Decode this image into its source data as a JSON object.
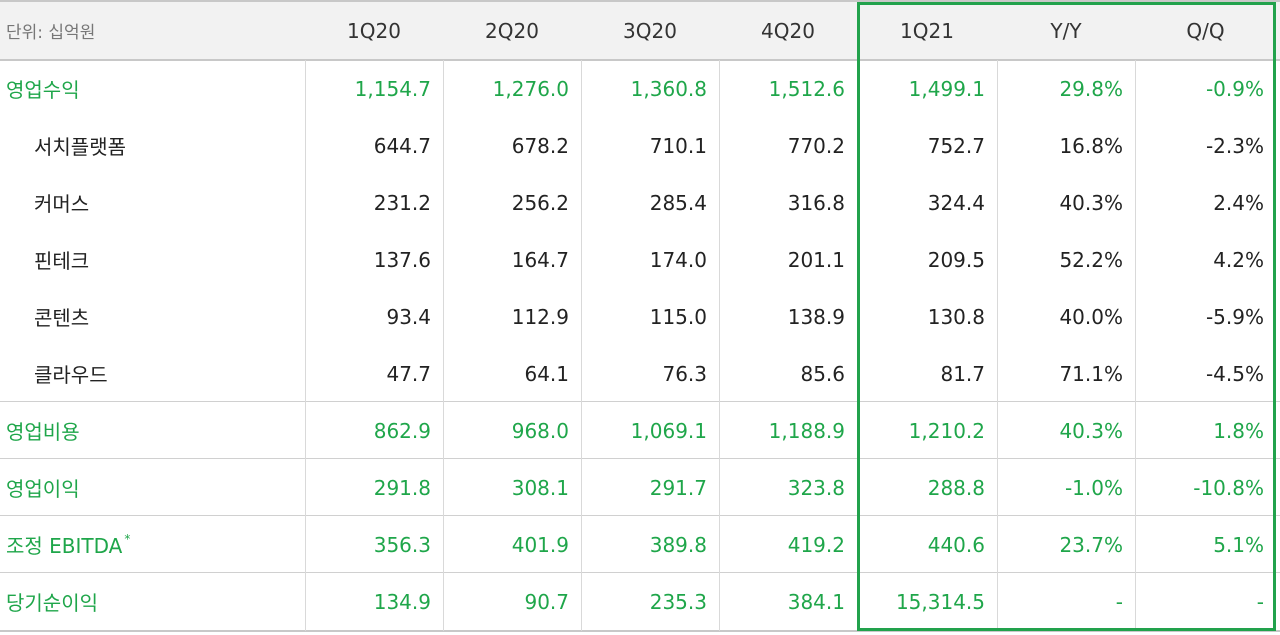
{
  "table": {
    "unit_label": "단위: 십억원",
    "columns": [
      "1Q20",
      "2Q20",
      "3Q20",
      "4Q20",
      "1Q21",
      "Y/Y",
      "Q/Q"
    ],
    "rows": [
      {
        "label": "영업수익",
        "values": [
          "1,154.7",
          "1,276.0",
          "1,360.8",
          "1,512.6",
          "1,499.1",
          "29.8%",
          "-0.9%"
        ]
      },
      {
        "label": "서치플랫폼",
        "values": [
          "644.7",
          "678.2",
          "710.1",
          "770.2",
          "752.7",
          "16.8%",
          "-2.3%"
        ]
      },
      {
        "label": "커머스",
        "values": [
          "231.2",
          "256.2",
          "285.4",
          "316.8",
          "324.4",
          "40.3%",
          "2.4%"
        ]
      },
      {
        "label": "핀테크",
        "values": [
          "137.6",
          "164.7",
          "174.0",
          "201.1",
          "209.5",
          "52.2%",
          "4.2%"
        ]
      },
      {
        "label": "콘텐츠",
        "values": [
          "93.4",
          "112.9",
          "115.0",
          "138.9",
          "130.8",
          "40.0%",
          "-5.9%"
        ]
      },
      {
        "label": "클라우드",
        "values": [
          "47.7",
          "64.1",
          "76.3",
          "85.6",
          "81.7",
          "71.1%",
          "-4.5%"
        ]
      },
      {
        "label": "영업비용",
        "values": [
          "862.9",
          "968.0",
          "1,069.1",
          "1,188.9",
          "1,210.2",
          "40.3%",
          "1.8%"
        ]
      },
      {
        "label": "영업이익",
        "values": [
          "291.8",
          "308.1",
          "291.7",
          "323.8",
          "288.8",
          "-1.0%",
          "-10.8%"
        ]
      },
      {
        "label": "조정 EBITDA",
        "footnote_mark": "*",
        "values": [
          "356.3",
          "401.9",
          "389.8",
          "419.2",
          "440.6",
          "23.7%",
          "5.1%"
        ]
      },
      {
        "label": "당기순이익",
        "values": [
          "134.9",
          "90.7",
          "235.3",
          "384.1",
          "15,314.5",
          "-",
          "-"
        ]
      }
    ]
  },
  "colors": {
    "accent_green": "#1fa64a",
    "highlight_border": "#22a24c",
    "header_bg": "#f2f2f2",
    "body_text": "#222222"
  }
}
